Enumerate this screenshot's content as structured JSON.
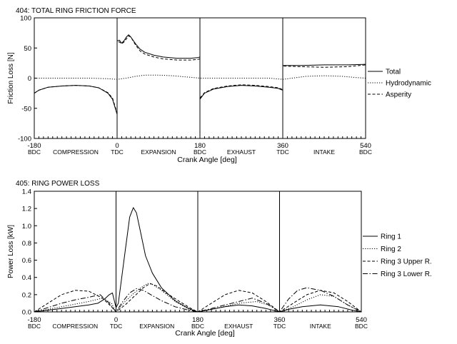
{
  "chart_data": [
    {
      "type": "line",
      "title": "404: TOTAL RING FRICTION FORCE",
      "xlabel": "Crank Angle  [deg]",
      "ylabel": "Friction Loss  [N]",
      "xlim": [
        -180,
        540
      ],
      "ylim": [
        -100,
        100
      ],
      "yticks": [
        -100,
        -50,
        0,
        50,
        100
      ],
      "xticks": [
        -180,
        0,
        180,
        360,
        540
      ],
      "xtick_sublabels": [
        "BDC",
        "TDC",
        "BDC",
        "TDC",
        "BDC"
      ],
      "stroke_labels": [
        {
          "text": "COMPRESSION",
          "x": -90
        },
        {
          "text": "EXPANSION",
          "x": 90
        },
        {
          "text": "EXHAUST",
          "x": 270
        },
        {
          "text": "INTAKE",
          "x": 450
        }
      ],
      "legend_position": "right",
      "series": [
        {
          "name": "Total",
          "dash": "solid",
          "x": [
            -180,
            -170,
            -150,
            -120,
            -90,
            -60,
            -40,
            -20,
            -10,
            0,
            0,
            5,
            10,
            15,
            20,
            25,
            30,
            40,
            50,
            60,
            80,
            100,
            130,
            160,
            175,
            180,
            180,
            190,
            210,
            240,
            270,
            300,
            330,
            350,
            360,
            360,
            400,
            450,
            500,
            540
          ],
          "y": [
            -25,
            -20,
            -15,
            -13,
            -12,
            -13,
            -16,
            -25,
            -35,
            -60,
            62,
            63,
            58,
            62,
            68,
            72,
            68,
            57,
            48,
            43,
            38,
            35,
            33,
            33,
            34,
            35,
            -35,
            -25,
            -18,
            -14,
            -12,
            -13,
            -15,
            -17,
            -20,
            21,
            21,
            22,
            22,
            23
          ]
        },
        {
          "name": "Hydrodynamic",
          "dash": "dotted",
          "x": [
            -180,
            -120,
            -60,
            -20,
            0,
            20,
            40,
            60,
            90,
            120,
            150,
            180,
            220,
            270,
            330,
            360,
            380,
            410,
            450,
            490,
            520,
            540
          ],
          "y": [
            0,
            0,
            0,
            -1,
            -2,
            0,
            3,
            5,
            5,
            4,
            2,
            0,
            0,
            0,
            0,
            -2,
            0,
            3,
            4,
            3,
            1,
            0
          ]
        },
        {
          "name": "Asperity",
          "dash": "dashed",
          "x": [
            -180,
            -170,
            -150,
            -120,
            -90,
            -60,
            -40,
            -20,
            -10,
            0,
            0,
            5,
            10,
            15,
            20,
            25,
            30,
            40,
            50,
            60,
            80,
            100,
            130,
            160,
            175,
            180,
            180,
            190,
            210,
            240,
            270,
            300,
            330,
            350,
            360,
            360,
            400,
            450,
            500,
            540
          ],
          "y": [
            -25,
            -20,
            -15,
            -13,
            -12,
            -13,
            -16,
            -24,
            -33,
            -58,
            60,
            60,
            57,
            60,
            65,
            70,
            68,
            55,
            45,
            40,
            35,
            32,
            30,
            30,
            31,
            32,
            -33,
            -24,
            -17,
            -13,
            -11,
            -12,
            -14,
            -16,
            -19,
            20,
            19,
            18,
            19,
            22
          ]
        }
      ]
    },
    {
      "type": "line",
      "title": "405: RING POWER LOSS",
      "xlabel": "Crank Angle  [deg]",
      "ylabel": "Power Loss  [kW]",
      "xlim": [
        -180,
        540
      ],
      "ylim": [
        0,
        1.4
      ],
      "yticks": [
        0,
        0.2,
        0.4,
        0.6,
        0.8,
        1.0,
        1.2,
        1.4
      ],
      "ytick_labels": [
        "0.0",
        "0.2",
        "0.4",
        "0.6",
        "0.8",
        "1.0",
        "1.2",
        "1.4"
      ],
      "xticks": [
        -180,
        0,
        180,
        360,
        540
      ],
      "xtick_sublabels": [
        "BDC",
        "TDC",
        "BDC",
        "TDC",
        "BDC"
      ],
      "stroke_labels": [
        {
          "text": "COMPRESSION",
          "x": -90
        },
        {
          "text": "EXPANSION",
          "x": 90
        },
        {
          "text": "EXHAUST",
          "x": 270
        },
        {
          "text": "INTAKE",
          "x": 450
        }
      ],
      "legend_position": "right",
      "series": [
        {
          "name": "Ring 1",
          "dash": "solid",
          "x": [
            -180,
            -150,
            -120,
            -90,
            -60,
            -40,
            -25,
            -15,
            -8,
            0,
            5,
            10,
            20,
            30,
            38,
            45,
            55,
            65,
            80,
            100,
            130,
            160,
            180,
            200,
            240,
            270,
            300,
            330,
            360,
            380,
            410,
            450,
            490,
            520,
            540
          ],
          "y": [
            0,
            0.02,
            0.04,
            0.06,
            0.08,
            0.1,
            0.15,
            0.2,
            0.22,
            0.05,
            0.1,
            0.3,
            0.7,
            1.1,
            1.21,
            1.15,
            0.9,
            0.65,
            0.45,
            0.28,
            0.13,
            0.04,
            0,
            0.02,
            0.06,
            0.08,
            0.07,
            0.04,
            0,
            0.03,
            0.06,
            0.08,
            0.06,
            0.02,
            0
          ]
        },
        {
          "name": "Ring 2",
          "dash": "dotted",
          "x": [
            -180,
            -150,
            -120,
            -90,
            -60,
            -30,
            -10,
            0,
            20,
            40,
            60,
            70,
            80,
            100,
            130,
            160,
            180,
            220,
            270,
            310,
            340,
            360,
            390,
            420,
            450,
            480,
            510,
            540
          ],
          "y": [
            0,
            0.03,
            0.06,
            0.09,
            0.12,
            0.16,
            0.1,
            0,
            0.12,
            0.22,
            0.3,
            0.33,
            0.32,
            0.25,
            0.12,
            0.03,
            0,
            0.04,
            0.1,
            0.12,
            0.07,
            0,
            0.06,
            0.14,
            0.2,
            0.18,
            0.08,
            0
          ]
        },
        {
          "name": "Ring 3 Upper R.",
          "dash": "dashed",
          "x": [
            -180,
            -150,
            -120,
            -90,
            -60,
            -30,
            -10,
            0,
            20,
            40,
            60,
            75,
            90,
            110,
            140,
            165,
            180,
            210,
            240,
            270,
            300,
            330,
            360,
            390,
            420,
            450,
            480,
            510,
            540
          ],
          "y": [
            0,
            0.1,
            0.2,
            0.25,
            0.24,
            0.16,
            0.06,
            0,
            0.08,
            0.18,
            0.28,
            0.33,
            0.3,
            0.22,
            0.12,
            0.04,
            0,
            0.1,
            0.2,
            0.25,
            0.22,
            0.12,
            0,
            0.1,
            0.2,
            0.25,
            0.22,
            0.12,
            0
          ]
        },
        {
          "name": "Ring 3 Lower R.",
          "dash": "dashdot",
          "x": [
            -180,
            -150,
            -120,
            -90,
            -60,
            -35,
            -15,
            0,
            15,
            30,
            45,
            60,
            80,
            100,
            130,
            160,
            180,
            210,
            240,
            270,
            300,
            330,
            360,
            380,
            400,
            420,
            450,
            480,
            510,
            540
          ],
          "y": [
            0,
            0.05,
            0.1,
            0.14,
            0.17,
            0.2,
            0.1,
            0,
            0.12,
            0.22,
            0.27,
            0.25,
            0.19,
            0.13,
            0.06,
            0.02,
            0,
            0.04,
            0.08,
            0.12,
            0.16,
            0.1,
            0,
            0.15,
            0.25,
            0.28,
            0.25,
            0.18,
            0.08,
            0
          ]
        }
      ]
    }
  ]
}
